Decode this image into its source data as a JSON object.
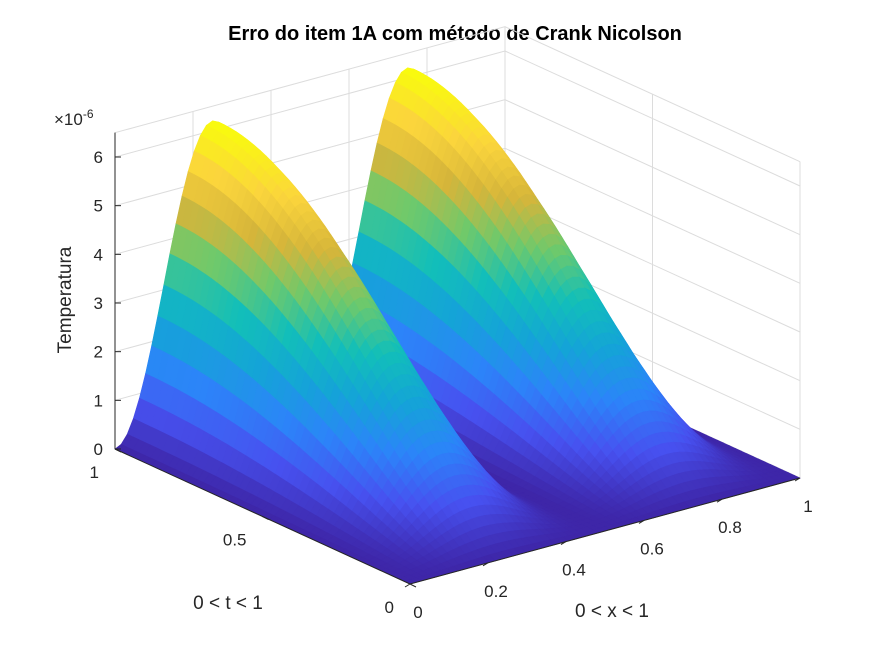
{
  "chart_data": {
    "type": "surface",
    "title": "Erro do item 1A com método de Crank Nicolson",
    "xlabel": "0 < x < 1",
    "ylabel": "0 < t < 1",
    "zlabel": "Temperatura",
    "z_exponent_label": "×10",
    "z_exponent_power": "-6",
    "xlim": [
      0,
      1
    ],
    "ylim": [
      0,
      1
    ],
    "zlim": [
      0,
      6.5e-06
    ],
    "x_ticks": [
      "0",
      "0.2",
      "0.4",
      "0.6",
      "0.8",
      "1"
    ],
    "x_tick_values": [
      0,
      0.2,
      0.4,
      0.6,
      0.8,
      1
    ],
    "y_ticks": [
      "0",
      "0.5",
      "1"
    ],
    "y_tick_values": [
      0,
      0.5,
      1
    ],
    "z_ticks": [
      "0",
      "1",
      "2",
      "3",
      "4",
      "5",
      "6"
    ],
    "z_tick_values": [
      0,
      1,
      2,
      3,
      4,
      5,
      6
    ],
    "peak_error": 6.2e-06,
    "grid": true,
    "colormap": "parula",
    "colormap_stops": [
      "#3e26a8",
      "#4751f0",
      "#2c84f9",
      "#14a4d7",
      "#12bfb9",
      "#6fc96b",
      "#d6b53a",
      "#fbd53c",
      "#f9fb0e"
    ]
  }
}
